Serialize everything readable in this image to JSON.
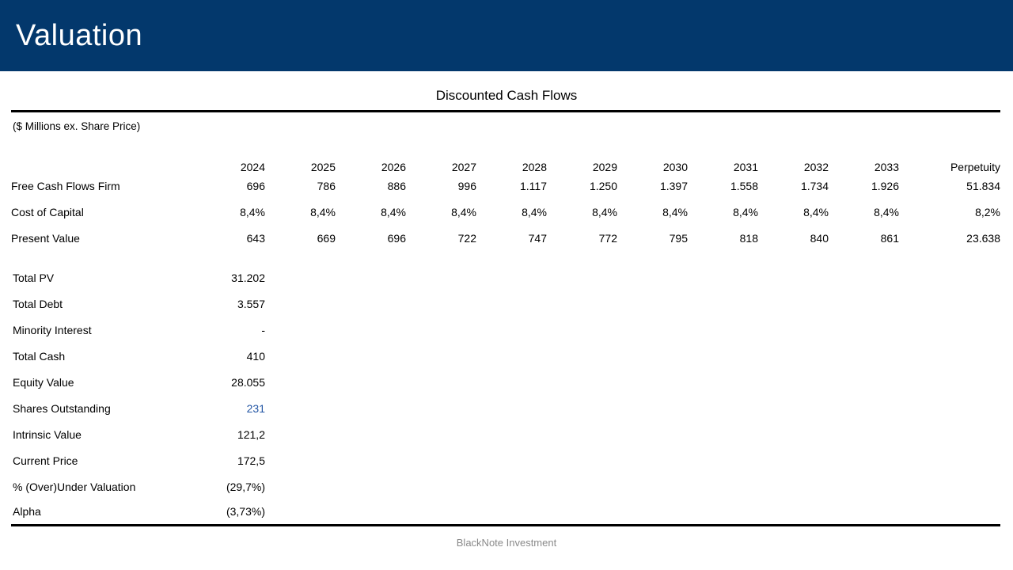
{
  "slide": {
    "title": "Valuation",
    "footer": "BlackNote Investment"
  },
  "table": {
    "title": "Discounted Cash Flows",
    "units_note": "($ Millions ex. Share Price)",
    "years": [
      "2024",
      "2025",
      "2026",
      "2027",
      "2028",
      "2029",
      "2030",
      "2031",
      "2032",
      "2033",
      "Perpetuity"
    ],
    "rows": [
      {
        "label": "Free Cash Flows Firm",
        "values": [
          "696",
          "786",
          "886",
          "996",
          "1.117",
          "1.250",
          "1.397",
          "1.558",
          "1.734",
          "1.926",
          "51.834"
        ]
      },
      {
        "label": "Cost of Capital",
        "values": [
          "8,4%",
          "8,4%",
          "8,4%",
          "8,4%",
          "8,4%",
          "8,4%",
          "8,4%",
          "8,4%",
          "8,4%",
          "8,4%",
          "8,2%"
        ]
      },
      {
        "label": "Present Value",
        "values": [
          "643",
          "669",
          "696",
          "722",
          "747",
          "772",
          "795",
          "818",
          "840",
          "861",
          "23.638"
        ]
      }
    ],
    "summary": [
      {
        "label": "Total PV",
        "value": "31.202"
      },
      {
        "label": "Total Debt",
        "value": "3.557"
      },
      {
        "label": "Minority Interest",
        "value": "-"
      },
      {
        "label": "Total Cash",
        "value": "410"
      },
      {
        "label": "Equity Value",
        "value": "28.055"
      },
      {
        "label": "Shares Outstanding",
        "value": "231"
      },
      {
        "label": "Intrinsic Value",
        "value": "121,2"
      },
      {
        "label": "Current Price",
        "value": "172,5"
      },
      {
        "label": "% (Over)Under Valuation",
        "value": "(29,7%)"
      },
      {
        "label": "Alpha",
        "value": "(3,73%)"
      }
    ]
  },
  "colors": {
    "header_bg": "#03386C",
    "accent_blue": "#2255A4",
    "footer_gray": "#8A8A8A",
    "rule_black": "#000000"
  }
}
